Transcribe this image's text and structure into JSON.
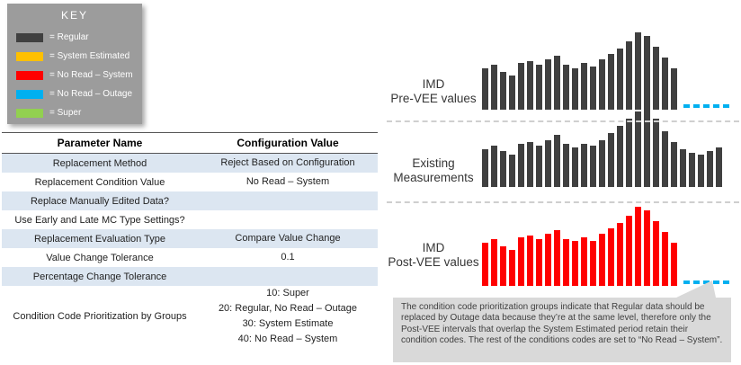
{
  "key_legend": {
    "title": "KEY",
    "items": [
      {
        "label": "= Regular",
        "color": "#404040"
      },
      {
        "label": "= System Estimated",
        "color": "#FFC000"
      },
      {
        "label": "= No Read – System",
        "color": "#FF0000"
      },
      {
        "label": "= No Read – Outage",
        "color": "#00B0F0"
      },
      {
        "label": "= Super",
        "color": "#92D050"
      }
    ]
  },
  "table": {
    "headers": [
      "Parameter Name",
      "Configuration Value"
    ],
    "rows": [
      {
        "param": "Replacement Method",
        "value": "Reject Based on Configuration"
      },
      {
        "param": "Replacement Condition Value",
        "value": "No Read – System"
      },
      {
        "param": "Replace Manually Edited Data?",
        "value": ""
      },
      {
        "param": "Use Early and Late MC Type Settings?",
        "value": ""
      },
      {
        "param": "Replacement Evaluation Type",
        "value": "Compare Value Change"
      },
      {
        "param": "Value Change Tolerance",
        "value": "0.1"
      },
      {
        "param": "Percentage Change Tolerance",
        "value": ""
      },
      {
        "param": "Condition Code Prioritization by Groups",
        "value": "10: Super\n20: Regular, No Read – Outage\n30: System Estimate\n40: No Read – System"
      }
    ]
  },
  "chart_data": [
    {
      "type": "bar",
      "title": "IMD Pre-VEE values",
      "label_lines": [
        "IMD",
        "Pre-VEE values"
      ],
      "bar_color": "#404040",
      "values": [
        46,
        50,
        42,
        38,
        52,
        54,
        50,
        56,
        60,
        50,
        46,
        52,
        48,
        56,
        62,
        68,
        76,
        86,
        82,
        70,
        58,
        46
      ],
      "tail": {
        "legend": "No Read – Outage",
        "dashes": 5,
        "color": "#00B0F0"
      }
    },
    {
      "type": "bar",
      "title": "Existing Measurements",
      "label_lines": [
        "Existing",
        "Measurements"
      ],
      "bar_color": "#404040",
      "values": [
        42,
        46,
        40,
        36,
        48,
        50,
        46,
        52,
        58,
        48,
        44,
        48,
        46,
        52,
        60,
        68,
        76,
        84,
        88,
        76,
        62,
        50,
        42,
        38,
        36,
        40,
        44
      ]
    },
    {
      "type": "bar",
      "title": "IMD Post-VEE values",
      "label_lines": [
        "IMD",
        "Post-VEE values"
      ],
      "bar_color": "#FF0000",
      "values": [
        48,
        52,
        44,
        40,
        54,
        56,
        52,
        58,
        62,
        52,
        50,
        54,
        50,
        58,
        64,
        70,
        78,
        88,
        84,
        72,
        60,
        48
      ],
      "tail": {
        "legend": "No Read – Outage",
        "dashes": 5,
        "color": "#00B0F0"
      }
    }
  ],
  "callout": {
    "text": "The condition code prioritization groups indicate that Regular data should be replaced by Outage data because they’re at the same level, therefore only the Post-VEE intervals that overlap the System Estimated period retain their condition codes.  The rest of the conditions codes are set to “No Read – System”."
  }
}
